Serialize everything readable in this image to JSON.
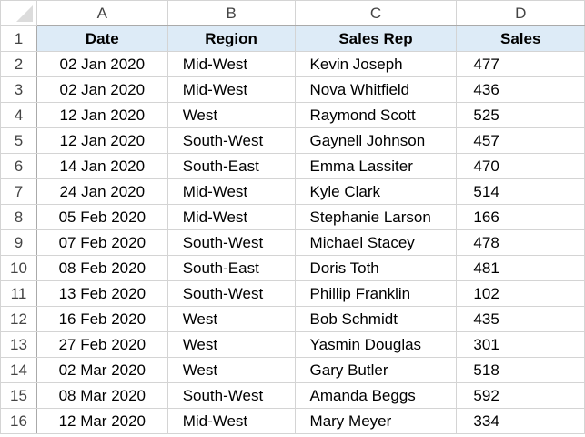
{
  "columns": [
    "A",
    "B",
    "C",
    "D"
  ],
  "headers": [
    "Date",
    "Region",
    "Sales Rep",
    "Sales"
  ],
  "rows": [
    [
      "02 Jan 2020",
      "Mid-West",
      "Kevin Joseph",
      "477"
    ],
    [
      "02 Jan 2020",
      "Mid-West",
      "Nova Whitfield",
      "436"
    ],
    [
      "12 Jan 2020",
      "West",
      "Raymond Scott",
      "525"
    ],
    [
      "12 Jan 2020",
      "South-West",
      "Gaynell Johnson",
      "457"
    ],
    [
      "14 Jan 2020",
      "South-East",
      "Emma Lassiter",
      "470"
    ],
    [
      "24 Jan 2020",
      "Mid-West",
      "Kyle Clark",
      "514"
    ],
    [
      "05 Feb 2020",
      "Mid-West",
      "Stephanie Larson",
      "166"
    ],
    [
      "07 Feb 2020",
      "South-West",
      "Michael Stacey",
      "478"
    ],
    [
      "08 Feb 2020",
      "South-East",
      "Doris Toth",
      "481"
    ],
    [
      "13 Feb 2020",
      "South-West",
      "Phillip Franklin",
      "102"
    ],
    [
      "16 Feb 2020",
      "West",
      "Bob Schmidt",
      "435"
    ],
    [
      "27 Feb 2020",
      "West",
      "Yasmin Douglas",
      "301"
    ],
    [
      "02 Mar 2020",
      "West",
      "Gary Butler",
      "518"
    ],
    [
      "08 Mar 2020",
      "South-West",
      "Amanda Beggs",
      "592"
    ],
    [
      "12 Mar 2020",
      "Mid-West",
      "Mary Meyer",
      "334"
    ]
  ],
  "row_numbers": [
    "1",
    "2",
    "3",
    "4",
    "5",
    "6",
    "7",
    "8",
    "9",
    "10",
    "11",
    "12",
    "13",
    "14",
    "15",
    "16"
  ],
  "colors": {
    "header_fill": "#ddebf7",
    "gridline": "#d4d4d4"
  }
}
